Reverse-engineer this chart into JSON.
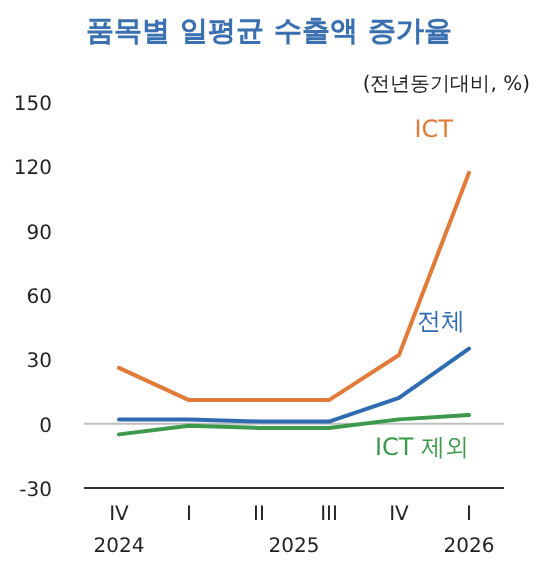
{
  "chart_data": {
    "type": "line",
    "title": "품목별 일평균 수출액 증가율",
    "subtitle": "(전년동기대비, %)",
    "categories": [
      "IV\n2024",
      "I",
      "II",
      "III",
      "IV",
      "I\n2026"
    ],
    "annotations": [
      "2025"
    ],
    "series": [
      {
        "name": "ICT",
        "color": "#e07b39",
        "values": [
          26,
          11,
          11,
          11,
          32,
          117
        ]
      },
      {
        "name": "전체",
        "color": "#2e6bb0",
        "values": [
          2,
          2,
          1,
          1,
          12,
          35
        ]
      },
      {
        "name": "ICT 제외",
        "color": "#3d9a4c",
        "values": [
          -5,
          -1,
          -2,
          -2,
          2,
          4
        ]
      }
    ],
    "ylim": [
      -30,
      150
    ],
    "yticks": [
      -30,
      0,
      30,
      60,
      90,
      120,
      150
    ],
    "ref_lines": [
      {
        "axis": "y",
        "value": 0,
        "color": "#bfbfbf"
      }
    ],
    "grid": false,
    "legend": false,
    "marker": "none",
    "line_style": "solid"
  }
}
